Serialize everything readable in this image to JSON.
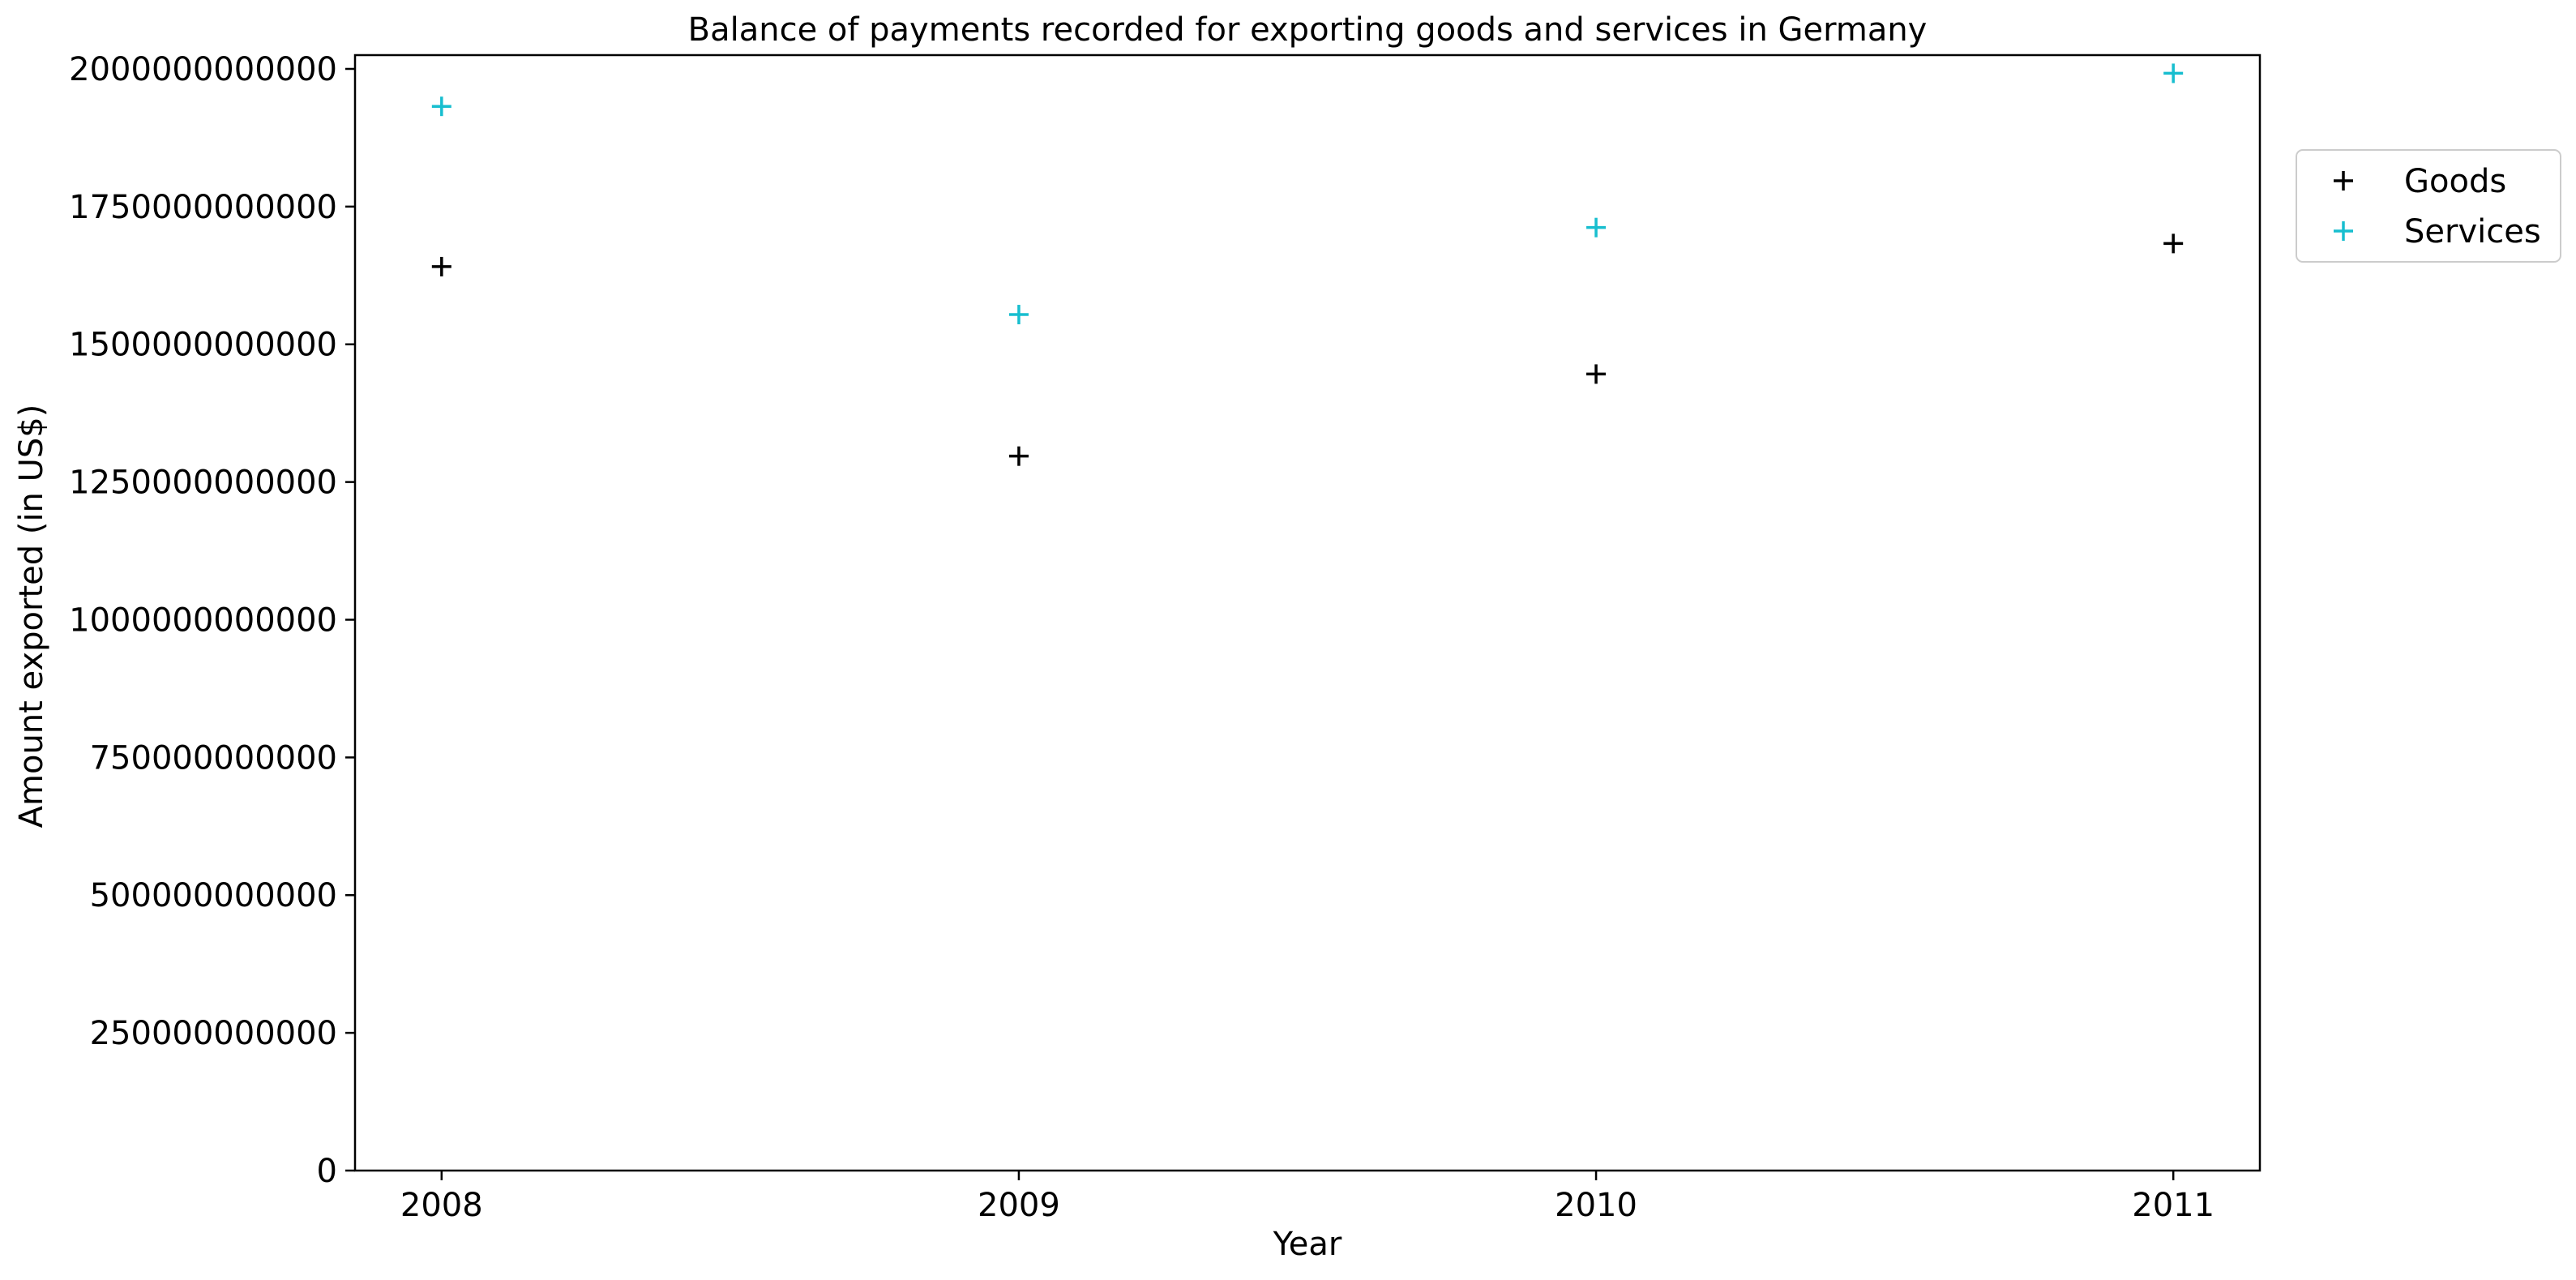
{
  "chart_data": {
    "type": "scatter",
    "title": "Balance of payments recorded for exporting goods and services in Germany",
    "xlabel": "Year",
    "ylabel": "Amount exported (in US$)",
    "x": [
      "2008",
      "2009",
      "2010",
      "2011"
    ],
    "yticks": [
      0,
      250000000000,
      500000000000,
      750000000000,
      1000000000000,
      1250000000000,
      1500000000000,
      1750000000000,
      2000000000000
    ],
    "ytick_labels": [
      "0",
      "250000000000",
      "500000000000",
      "750000000000",
      "1000000000000",
      "1250000000000",
      "1500000000000",
      "1750000000000",
      "2000000000000"
    ],
    "ylim": [
      0,
      2025000000000
    ],
    "grid": false,
    "legend_position": "outside-right-top",
    "marker": "+",
    "series": [
      {
        "name": "Goods",
        "color": "#000000",
        "values": [
          1641000000000,
          1297000000000,
          1446000000000,
          1683000000000
        ]
      },
      {
        "name": "Services",
        "color": "#17becf",
        "values": [
          1932000000000,
          1554000000000,
          1712000000000,
          1992000000000
        ]
      }
    ]
  }
}
